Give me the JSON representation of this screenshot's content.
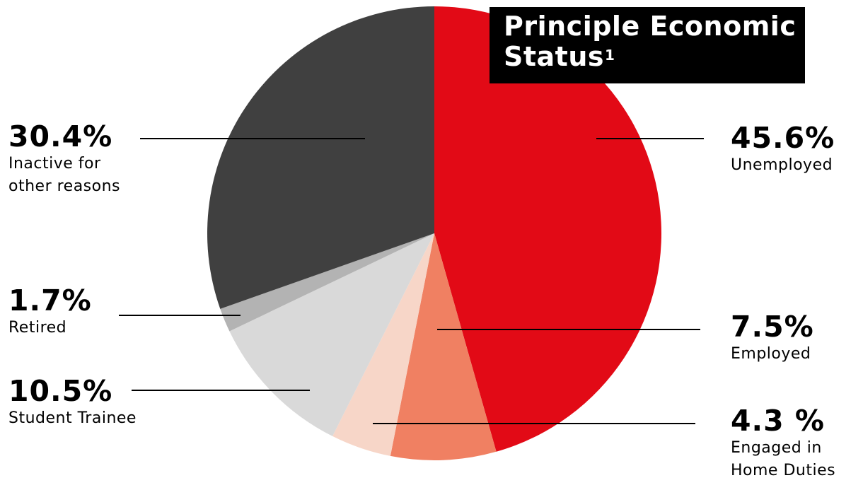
{
  "chart_data": {
    "type": "pie",
    "title": "Principle Economic Status",
    "title_footnote": "1",
    "start_angle": "12 o'clock",
    "direction": "clockwise",
    "slices": [
      {
        "label": "Unemployed",
        "value": 45.6,
        "value_label": "45.6%",
        "color": "#e20a16"
      },
      {
        "label": "Employed",
        "value": 7.5,
        "value_label": "7.5%",
        "color": "#f08062"
      },
      {
        "label": "Engaged in Home Duties",
        "value": 4.3,
        "value_label": "4.3 %",
        "color": "#f7d6c8"
      },
      {
        "label": "Student Trainee",
        "value": 10.5,
        "value_label": "10.5%",
        "color": "#d9d9d9"
      },
      {
        "label": "Retired",
        "value": 1.7,
        "value_label": "1.7%",
        "color": "#b3b3b3"
      },
      {
        "label": "Inactive for other reasons",
        "value": 30.4,
        "value_label": "30.4%",
        "color": "#404040"
      }
    ]
  },
  "labels": {
    "unemployed": {
      "pct": "45.6%",
      "desc_lines": [
        "Unemployed"
      ]
    },
    "employed": {
      "pct": "7.5%",
      "desc_lines": [
        "Employed"
      ]
    },
    "home_duties": {
      "pct": "4.3 %",
      "desc_lines": [
        "Engaged in",
        "Home Duties"
      ]
    },
    "student": {
      "pct": "10.5%",
      "desc_lines": [
        "Student Trainee"
      ]
    },
    "retired": {
      "pct": "1.7%",
      "desc_lines": [
        "Retired"
      ]
    },
    "inactive": {
      "pct": "30.4%",
      "desc_lines": [
        "Inactive for",
        "other reasons"
      ]
    }
  },
  "title": {
    "text": "Principle Economic Status",
    "sup": "1"
  }
}
